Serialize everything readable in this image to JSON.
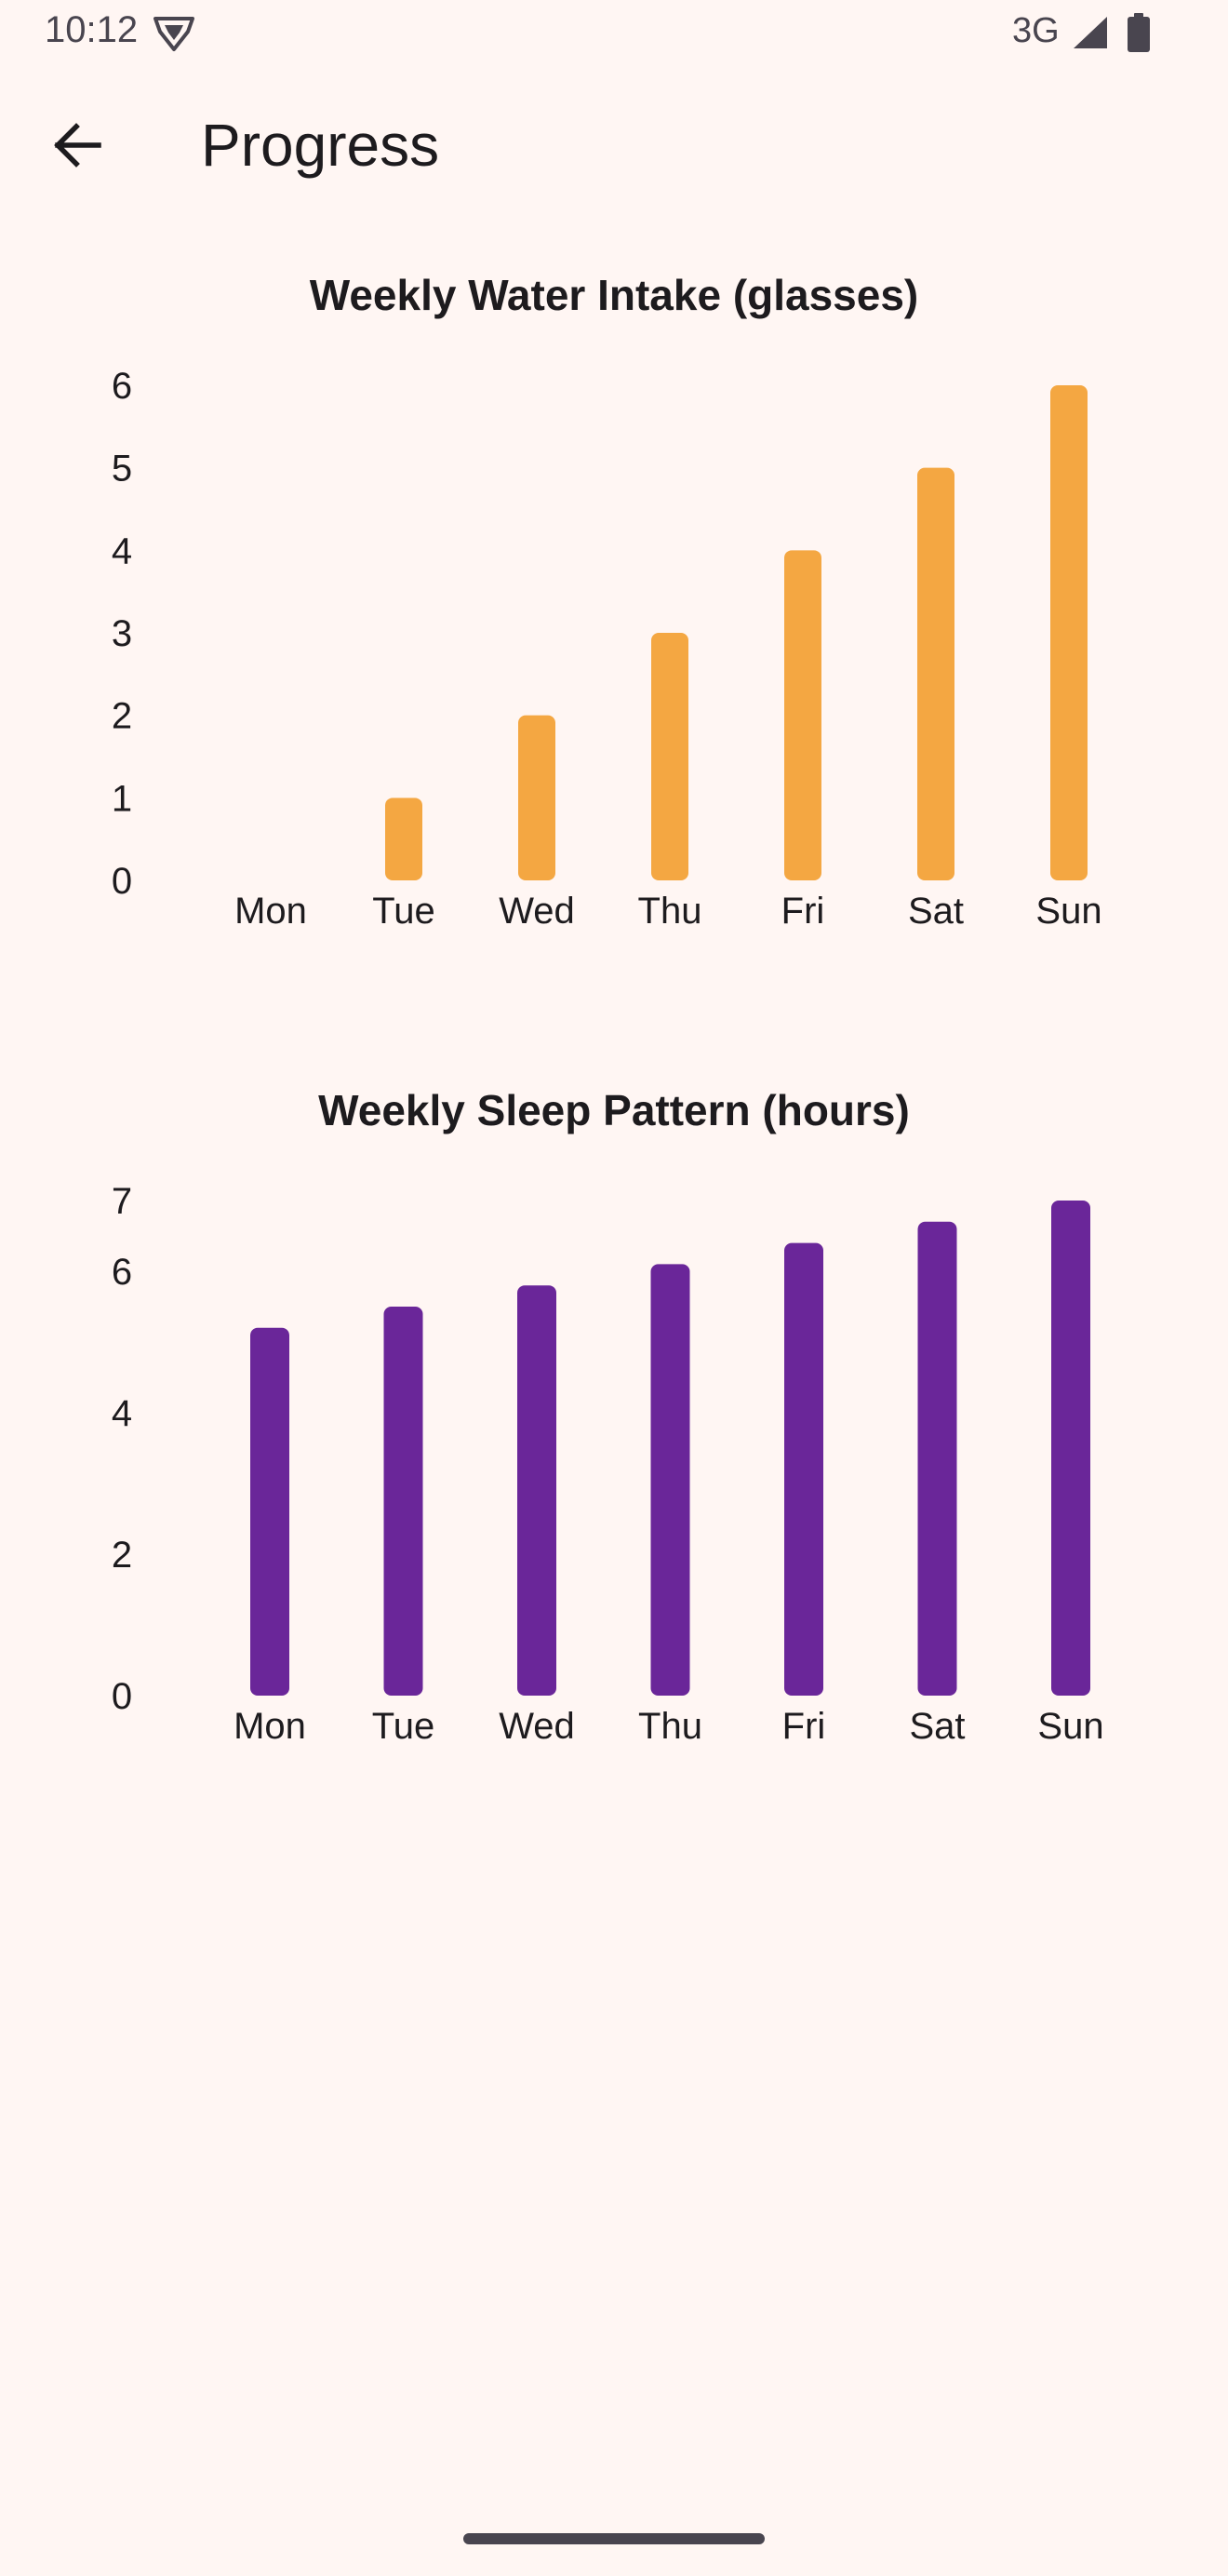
{
  "status_bar": {
    "time": "10:12",
    "network": "3G",
    "icons": [
      "shield-icon",
      "signal-icon",
      "battery-icon"
    ]
  },
  "app_bar": {
    "title": "Progress",
    "back_icon": "arrow-left-icon"
  },
  "colors": {
    "background": "#fff6f3",
    "water_bar": "#f4a742",
    "sleep_bar": "#6a2699"
  },
  "chart_data": [
    {
      "type": "bar",
      "title": "Weekly Water Intake (glasses)",
      "categories": [
        "Mon",
        "Tue",
        "Wed",
        "Thu",
        "Fri",
        "Sat",
        "Sun"
      ],
      "values": [
        0,
        1,
        2,
        3,
        4,
        5,
        6
      ],
      "ylim": [
        0,
        6
      ],
      "yticks": [
        0,
        1,
        2,
        3,
        4,
        5,
        6
      ],
      "grid": false,
      "color": "#f4a742"
    },
    {
      "type": "bar",
      "title": "Weekly Sleep Pattern (hours)",
      "categories": [
        "Mon",
        "Tue",
        "Wed",
        "Thu",
        "Fri",
        "Sat",
        "Sun"
      ],
      "values": [
        5.2,
        5.5,
        5.8,
        6.1,
        6.4,
        6.7,
        7.0
      ],
      "ylim": [
        0,
        7
      ],
      "yticks": [
        0,
        2,
        4,
        6,
        7
      ],
      "grid": false,
      "color": "#6a2699"
    }
  ]
}
